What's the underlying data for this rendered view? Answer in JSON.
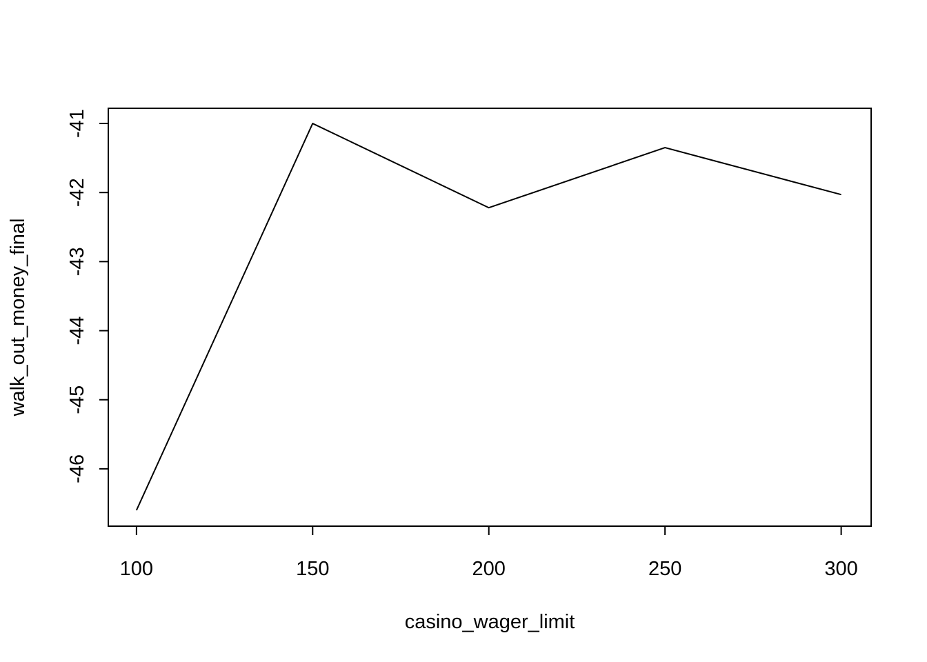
{
  "chart_data": {
    "type": "line",
    "title": "",
    "xlabel": "casino_wager_limit",
    "ylabel": "walk_out_money_final",
    "x": [
      100,
      150,
      200,
      250,
      300
    ],
    "series": [
      {
        "values": [
          -46.6,
          -41.0,
          -42.22,
          -41.35,
          -42.03
        ],
        "color": "#000000"
      }
    ],
    "xlim": [
      92,
      308.5
    ],
    "ylim": [
      -46.83,
      -40.78
    ],
    "xticks": [
      "100",
      "150",
      "200",
      "250",
      "300"
    ],
    "yticks": [
      "-46",
      "-45",
      "-44",
      "-43",
      "-42",
      "-41"
    ],
    "grid": false,
    "legend": "none"
  }
}
